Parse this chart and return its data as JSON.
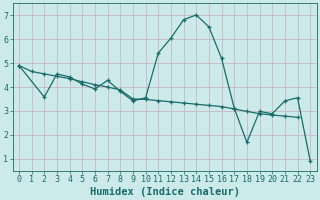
{
  "xlabel": "Humidex (Indice chaleur)",
  "background_color": "#cceaea",
  "grid_color": "#c8b8c8",
  "line_color": "#1a6b6b",
  "xlim": [
    -0.5,
    23.5
  ],
  "ylim": [
    0.5,
    7.5
  ],
  "xticks": [
    0,
    1,
    2,
    3,
    4,
    5,
    6,
    7,
    8,
    9,
    10,
    11,
    12,
    13,
    14,
    15,
    16,
    17,
    18,
    19,
    20,
    21,
    22,
    23
  ],
  "yticks": [
    1,
    2,
    3,
    4,
    5,
    6,
    7
  ],
  "line1_x": [
    0,
    1,
    2,
    3,
    4,
    5,
    6,
    7,
    8,
    9,
    10,
    11,
    12,
    13,
    14,
    15,
    16,
    17,
    18,
    19,
    20,
    21,
    22
  ],
  "line1_y": [
    4.9,
    4.65,
    4.55,
    4.45,
    4.35,
    4.22,
    4.1,
    4.0,
    3.88,
    3.5,
    3.48,
    3.43,
    3.38,
    3.33,
    3.28,
    3.23,
    3.18,
    3.08,
    2.98,
    2.88,
    2.83,
    2.78,
    2.73
  ],
  "line2_x": [
    0,
    2,
    3,
    4,
    5,
    6,
    7,
    8,
    9,
    10,
    11,
    12,
    13,
    14,
    15,
    16,
    17,
    18,
    19,
    20,
    21,
    22,
    23
  ],
  "line2_y": [
    4.9,
    3.58,
    4.55,
    4.42,
    4.12,
    3.92,
    4.28,
    3.82,
    3.42,
    3.55,
    5.42,
    6.05,
    6.82,
    7.02,
    6.52,
    5.2,
    3.12,
    1.68,
    2.98,
    2.88,
    3.42,
    3.55,
    0.9
  ],
  "font_color": "#1a6b6b",
  "tick_fontsize": 6,
  "label_fontsize": 7.5
}
